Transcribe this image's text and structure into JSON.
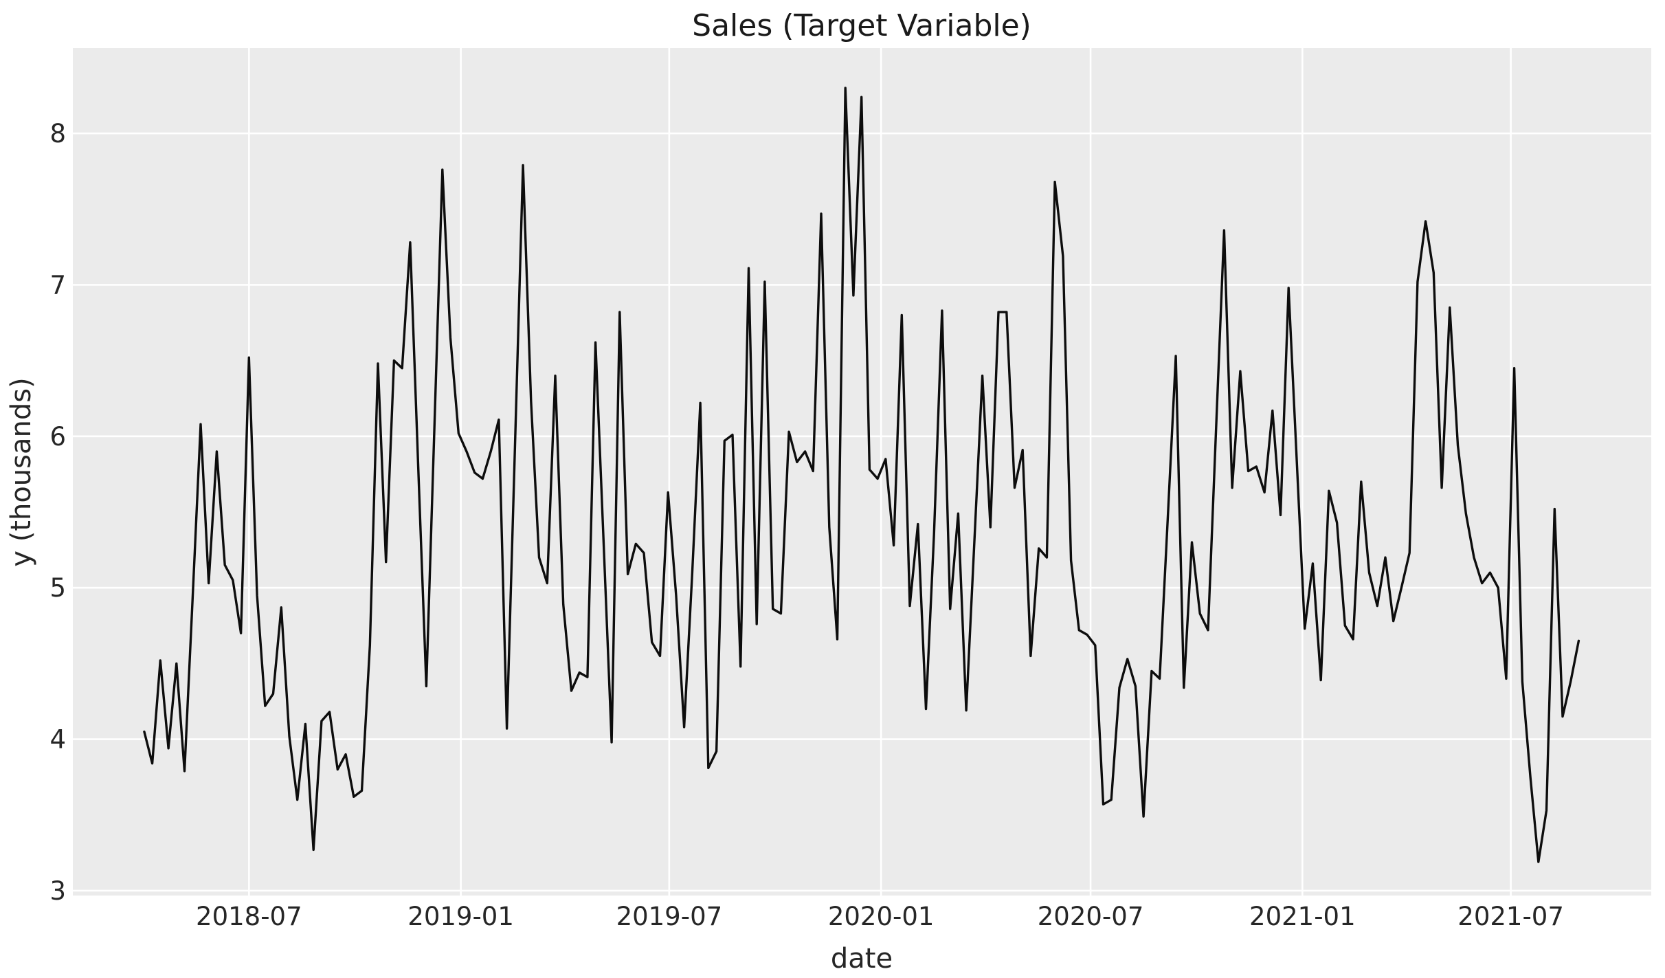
{
  "chart_data": {
    "type": "line",
    "title": "Sales (Target Variable)",
    "xlabel": "date",
    "ylabel": "y (thousands)",
    "series_name": "Sales",
    "frequency": "weekly",
    "start_date": "2018-04-01",
    "end_date": "2021-08-29",
    "x_ticks": [
      {
        "label": "2018-07",
        "date": "2018-07-01"
      },
      {
        "label": "2019-01",
        "date": "2019-01-01"
      },
      {
        "label": "2019-07",
        "date": "2019-07-01"
      },
      {
        "label": "2020-01",
        "date": "2020-01-01"
      },
      {
        "label": "2020-07",
        "date": "2020-07-01"
      },
      {
        "label": "2021-01",
        "date": "2021-01-01"
      },
      {
        "label": "2021-07",
        "date": "2021-07-01"
      }
    ],
    "y_ticks": [
      3,
      4,
      5,
      6,
      7,
      8
    ],
    "ylim": [
      2.968,
      8.563
    ],
    "xlim": [
      "2018-01-29",
      "2021-10-31"
    ],
    "grid": true,
    "legend": "none",
    "colors": {
      "line": "#0d0d0d",
      "axes_background": "#ebebeb",
      "grid": "#ffffff",
      "figure_background": "#ffffff",
      "text": "#262626"
    },
    "values": [
      4.05,
      3.84,
      4.52,
      3.94,
      4.5,
      3.79,
      4.92,
      6.08,
      5.03,
      5.9,
      5.15,
      5.05,
      4.7,
      6.52,
      4.95,
      4.22,
      4.3,
      4.87,
      4.02,
      3.6,
      4.1,
      3.27,
      4.12,
      4.18,
      3.8,
      3.9,
      3.62,
      3.66,
      4.62,
      6.48,
      5.17,
      6.5,
      6.45,
      7.28,
      5.8,
      4.35,
      6.05,
      7.76,
      6.65,
      6.02,
      5.9,
      5.76,
      5.72,
      5.9,
      6.11,
      4.07,
      5.93,
      7.79,
      6.23,
      5.2,
      5.03,
      6.4,
      4.89,
      4.32,
      4.44,
      4.41,
      6.62,
      5.3,
      3.98,
      6.82,
      5.09,
      5.29,
      5.23,
      4.64,
      4.55,
      5.63,
      4.95,
      4.08,
      5.1,
      6.22,
      3.81,
      3.92,
      5.97,
      6.01,
      4.48,
      7.11,
      4.76,
      7.02,
      4.86,
      4.83,
      6.03,
      5.83,
      5.9,
      5.77,
      7.47,
      5.4,
      4.66,
      8.3,
      6.93,
      8.24,
      5.78,
      5.72,
      5.85,
      5.28,
      6.8,
      4.88,
      5.42,
      4.2,
      5.35,
      6.83,
      4.86,
      5.49,
      4.19,
      5.3,
      6.4,
      5.4,
      6.82,
      6.82,
      5.66,
      5.91,
      4.55,
      5.26,
      5.2,
      7.68,
      7.19,
      5.18,
      4.72,
      4.69,
      4.62,
      3.57,
      3.6,
      4.34,
      4.53,
      4.35,
      3.49,
      4.45,
      4.4,
      5.45,
      6.53,
      4.34,
      5.3,
      4.83,
      4.72,
      6.05,
      7.36,
      5.66,
      6.43,
      5.77,
      5.8,
      5.63,
      6.17,
      5.48,
      6.98,
      5.85,
      4.73,
      5.16,
      4.39,
      5.64,
      5.43,
      4.75,
      4.66,
      5.7,
      5.1,
      4.88,
      5.2,
      4.78,
      5.0,
      5.23,
      7.02,
      7.42,
      7.08,
      5.66,
      6.85,
      5.94,
      5.49,
      5.2,
      5.03,
      5.1,
      5.0,
      4.4,
      6.45,
      4.38,
      3.75,
      3.19,
      3.53,
      5.52,
      4.15,
      4.38,
      4.65
    ]
  }
}
